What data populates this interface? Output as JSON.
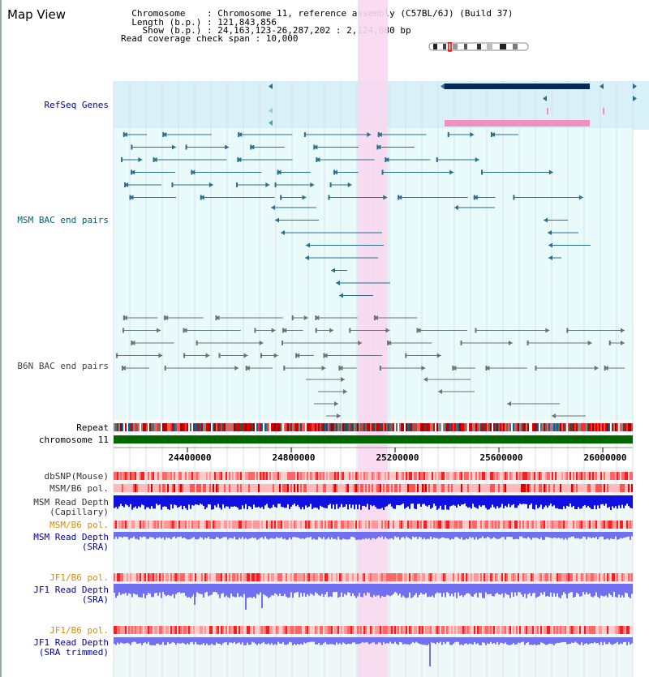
{
  "header": {
    "title": "Map View",
    "info_lines": [
      "  Chromosome    : Chromosome 11, reference assembly (C57BL/6J) (Build 37)",
      "  Length (b.p.) : 121,843,856",
      "    Show (b.p.) : 24,163,123-26,287,202 : 2,124,080 bp",
      "Read coverage check span : 10,000"
    ]
  },
  "tracks": {
    "refseq": "RefSeq Genes",
    "msm_bac": "MSM BAC end pairs",
    "b6n_bac": "B6N BAC end pairs",
    "repeat": "Repeat",
    "chromosome": "chromosome 11",
    "dbsnp": "dbSNP(Mouse)",
    "msm_b6_pol": "MSM/B6 pol.",
    "msm_depth_cap_1": "MSM Read Depth",
    "msm_depth_cap_2": "(Capillary)",
    "msm_b6_pol_sra": "MSM/B6 pol.",
    "msm_depth_sra_1": "MSM Read Depth",
    "msm_depth_sra_2": "(SRA)",
    "jf1_b6_pol": "JF1/B6 pol.",
    "jf1_depth_1": "JF1 Read Depth",
    "jf1_depth_2": "(SRA)",
    "jf1_b6_pol_2": "JF1/B6 pol.",
    "jf1_trim_1": "JF1 Read Depth",
    "jf1_trim_2": "(SRA trimmed)"
  },
  "axis": {
    "ticks": [
      "24400000",
      "24800000",
      "25200000",
      "25600000",
      "26000000"
    ]
  },
  "colors": {
    "highlight": "#f8d8f0",
    "refseq_bg": "#d8f0f8",
    "bac_bg": "#e8fafa",
    "chromosome_bar": "#006600",
    "msm_feature": "#2a6f8a",
    "b6n_feature": "#707070",
    "gene_dark": "#002a5c",
    "gene_pink": "#f090c0",
    "depth_dark": "#1010e0",
    "depth_light": "#7070f0"
  }
}
